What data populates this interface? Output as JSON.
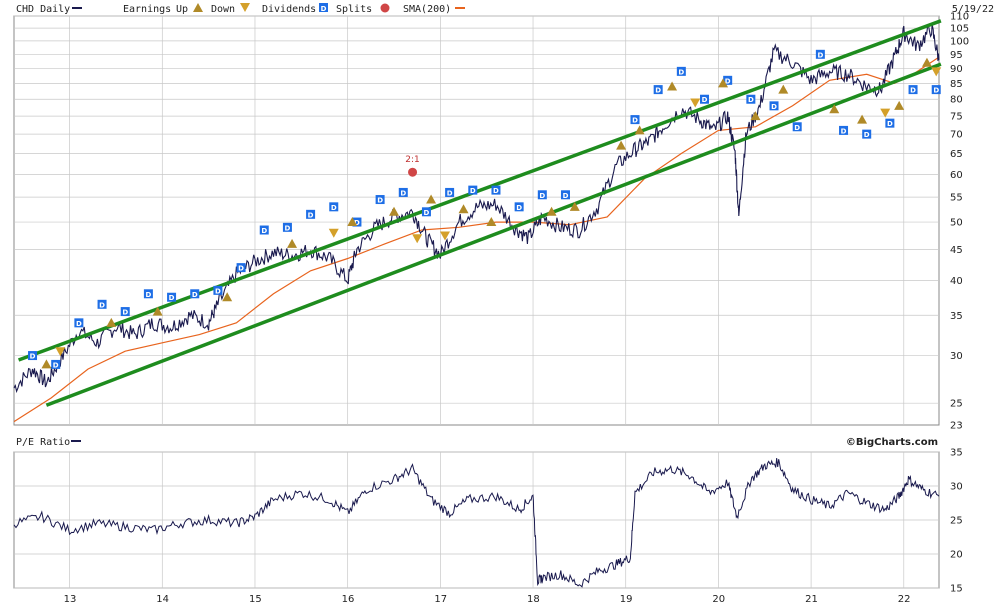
{
  "header": {
    "symbol_label": "CHD Daily",
    "earnings_label": "Earnings",
    "up_label": "Up",
    "down_label": "Down",
    "dividends_label": "Dividends",
    "splits_label": "Splits",
    "sma_label": "SMA(200)",
    "date_label": "5/19/22",
    "pe_label": "P/E Ratio",
    "brand": "©BigCharts.com"
  },
  "colors": {
    "price": "#1a1a4e",
    "sma": "#e8641e",
    "channel": "#1e8c1e",
    "dividend": "#1e6ee6",
    "earnings_up": "#b08a28",
    "earnings_down": "#d4a02a",
    "split": "#d04646",
    "grid": "#c8c8c8"
  },
  "chart_data": [
    {
      "type": "line",
      "title": "CHD Daily",
      "y_scale": "log",
      "ylim": [
        23,
        110
      ],
      "y_ticks": [
        25,
        30,
        35,
        40,
        45,
        50,
        55,
        60,
        65,
        70,
        75,
        80,
        85,
        90,
        95,
        100,
        105,
        110
      ],
      "y_tick_labels": [
        "25",
        "30",
        "35",
        "40",
        "45",
        "50",
        "55",
        "60",
        "65",
        "70",
        "75",
        "80",
        "85",
        "90",
        "95",
        "100",
        "105",
        "110"
      ],
      "y_ticks_bottom_label": "23",
      "xlim": [
        2012.4,
        2022.38
      ],
      "x_ticks": [
        2013,
        2014,
        2015,
        2016,
        2017,
        2018,
        2019,
        2020,
        2021,
        2022
      ],
      "x_tick_labels": [
        "13",
        "14",
        "15",
        "16",
        "17",
        "18",
        "19",
        "20",
        "21",
        "22"
      ],
      "grid": true,
      "series": [
        {
          "name": "CHD Daily",
          "x": [
            2012.4,
            2012.6,
            2012.75,
            2012.9,
            2013.1,
            2013.3,
            2013.5,
            2013.7,
            2013.9,
            2014.1,
            2014.3,
            2014.5,
            2014.6,
            2014.8,
            2015.0,
            2015.2,
            2015.4,
            2015.6,
            2015.8,
            2016.0,
            2016.1,
            2016.3,
            2016.5,
            2016.7,
            2016.85,
            2017.0,
            2017.2,
            2017.4,
            2017.6,
            2017.8,
            2017.95,
            2018.1,
            2018.3,
            2018.5,
            2018.7,
            2018.9,
            2019.1,
            2019.25,
            2019.4,
            2019.6,
            2019.8,
            2019.95,
            2020.1,
            2020.18,
            2020.22,
            2020.3,
            2020.45,
            2020.6,
            2020.8,
            2021.0,
            2021.2,
            2021.4,
            2021.6,
            2021.75,
            2021.9,
            2022.0,
            2022.15,
            2022.3,
            2022.38
          ],
          "values": [
            26.5,
            28.5,
            27.0,
            29.5,
            33.0,
            31.5,
            33.5,
            32.5,
            34.0,
            33.5,
            35.0,
            34.0,
            36.5,
            41.0,
            43.0,
            44.5,
            44.0,
            45.0,
            43.5,
            40.0,
            45.0,
            49.0,
            51.0,
            52.0,
            47.0,
            44.0,
            50.0,
            53.0,
            53.5,
            49.0,
            47.0,
            51.0,
            49.0,
            48.5,
            53.0,
            62.0,
            66.0,
            68.0,
            72.0,
            77.0,
            74.0,
            71.0,
            75.0,
            65.0,
            51.0,
            70.0,
            78.0,
            96.0,
            92.0,
            86.0,
            89.0,
            88.0,
            84.0,
            83.0,
            94.0,
            103.0,
            98.0,
            105.0,
            93.0
          ]
        },
        {
          "name": "SMA(200)",
          "x": [
            2012.4,
            2012.8,
            2013.2,
            2013.6,
            2014.0,
            2014.4,
            2014.8,
            2015.2,
            2015.6,
            2016.0,
            2016.4,
            2016.8,
            2017.2,
            2017.6,
            2018.0,
            2018.4,
            2018.8,
            2019.2,
            2019.6,
            2020.0,
            2020.4,
            2020.8,
            2021.2,
            2021.6,
            2021.9,
            2022.1,
            2022.38
          ],
          "values": [
            23.3,
            25.5,
            28.5,
            30.5,
            31.5,
            32.5,
            34.0,
            38.0,
            41.5,
            43.5,
            46.0,
            48.5,
            49.0,
            50.0,
            50.0,
            49.5,
            51.0,
            59.0,
            65.0,
            71.0,
            72.0,
            78.0,
            86.0,
            88.0,
            85.0,
            88.0,
            94.0
          ]
        },
        {
          "name": "Channel upper",
          "x": [
            2012.45,
            2022.4
          ],
          "values": [
            29.5,
            108.0
          ]
        },
        {
          "name": "Channel lower",
          "x": [
            2012.75,
            2022.4
          ],
          "values": [
            24.8,
            91.5
          ]
        }
      ],
      "events": {
        "dividends": [
          {
            "x": 2012.6,
            "y": 30.0
          },
          {
            "x": 2012.85,
            "y": 29.0
          },
          {
            "x": 2013.1,
            "y": 34.0
          },
          {
            "x": 2013.35,
            "y": 36.5
          },
          {
            "x": 2013.6,
            "y": 35.5
          },
          {
            "x": 2013.85,
            "y": 38.0
          },
          {
            "x": 2014.1,
            "y": 37.5
          },
          {
            "x": 2014.35,
            "y": 38.0
          },
          {
            "x": 2014.6,
            "y": 38.5
          },
          {
            "x": 2014.85,
            "y": 42.0
          },
          {
            "x": 2015.1,
            "y": 48.5
          },
          {
            "x": 2015.35,
            "y": 49.0
          },
          {
            "x": 2015.6,
            "y": 51.5
          },
          {
            "x": 2015.85,
            "y": 53.0
          },
          {
            "x": 2016.1,
            "y": 50.0
          },
          {
            "x": 2016.35,
            "y": 54.5
          },
          {
            "x": 2016.6,
            "y": 56.0
          },
          {
            "x": 2016.85,
            "y": 52.0
          },
          {
            "x": 2017.1,
            "y": 56.0
          },
          {
            "x": 2017.35,
            "y": 56.5
          },
          {
            "x": 2017.6,
            "y": 56.5
          },
          {
            "x": 2017.85,
            "y": 53.0
          },
          {
            "x": 2018.1,
            "y": 55.5
          },
          {
            "x": 2018.35,
            "y": 55.5
          },
          {
            "x": 2019.1,
            "y": 74.0
          },
          {
            "x": 2019.35,
            "y": 83.0
          },
          {
            "x": 2019.6,
            "y": 89.0
          },
          {
            "x": 2019.85,
            "y": 80.0
          },
          {
            "x": 2020.1,
            "y": 86.0
          },
          {
            "x": 2020.35,
            "y": 80.0
          },
          {
            "x": 2020.6,
            "y": 78.0
          },
          {
            "x": 2020.85,
            "y": 72.0
          },
          {
            "x": 2021.1,
            "y": 95.0
          },
          {
            "x": 2021.35,
            "y": 71.0
          },
          {
            "x": 2021.6,
            "y": 70.0
          },
          {
            "x": 2021.85,
            "y": 73.0
          },
          {
            "x": 2022.1,
            "y": 83.0
          },
          {
            "x": 2022.35,
            "y": 83.0
          }
        ],
        "earnings_up": [
          {
            "x": 2012.75,
            "y": 29.0
          },
          {
            "x": 2013.45,
            "y": 34.0
          },
          {
            "x": 2013.95,
            "y": 35.5
          },
          {
            "x": 2014.7,
            "y": 37.5
          },
          {
            "x": 2015.4,
            "y": 46.0
          },
          {
            "x": 2016.05,
            "y": 50.0
          },
          {
            "x": 2016.5,
            "y": 52.0
          },
          {
            "x": 2016.9,
            "y": 54.5
          },
          {
            "x": 2017.25,
            "y": 52.5
          },
          {
            "x": 2017.55,
            "y": 50.0
          },
          {
            "x": 2018.2,
            "y": 52.0
          },
          {
            "x": 2018.45,
            "y": 53.0
          },
          {
            "x": 2018.95,
            "y": 67.0
          },
          {
            "x": 2019.15,
            "y": 71.0
          },
          {
            "x": 2019.5,
            "y": 84.0
          },
          {
            "x": 2020.05,
            "y": 85.0
          },
          {
            "x": 2020.4,
            "y": 75.0
          },
          {
            "x": 2020.7,
            "y": 83.0
          },
          {
            "x": 2021.25,
            "y": 77.0
          },
          {
            "x": 2021.55,
            "y": 74.0
          },
          {
            "x": 2021.95,
            "y": 78.0
          },
          {
            "x": 2022.25,
            "y": 92.0
          }
        ],
        "earnings_down": [
          {
            "x": 2012.9,
            "y": 30.5
          },
          {
            "x": 2015.85,
            "y": 48.0
          },
          {
            "x": 2016.75,
            "y": 47.0
          },
          {
            "x": 2017.05,
            "y": 47.5
          },
          {
            "x": 2019.75,
            "y": 79.0
          },
          {
            "x": 2021.8,
            "y": 76.0
          },
          {
            "x": 2022.35,
            "y": 89.0
          }
        ],
        "splits": [
          {
            "x": 2016.7,
            "y": 60.5,
            "label": "2:1"
          }
        ]
      }
    },
    {
      "type": "line",
      "title": "P/E Ratio",
      "ylim": [
        15,
        35
      ],
      "y_ticks": [
        15,
        20,
        25,
        30,
        35
      ],
      "y_tick_labels": [
        "15",
        "20",
        "25",
        "30",
        "35"
      ],
      "grid": true,
      "series": [
        {
          "name": "P/E Ratio",
          "x": [
            2012.4,
            2012.7,
            2013.0,
            2013.3,
            2013.6,
            2013.9,
            2014.2,
            2014.5,
            2014.8,
            2015.0,
            2015.2,
            2015.5,
            2015.8,
            2016.0,
            2016.2,
            2016.5,
            2016.7,
            2016.9,
            2017.1,
            2017.3,
            2017.6,
            2017.85,
            2018.0,
            2018.05,
            2018.1,
            2018.3,
            2018.5,
            2018.7,
            2018.9,
            2019.05,
            2019.1,
            2019.3,
            2019.5,
            2019.7,
            2019.9,
            2020.1,
            2020.2,
            2020.35,
            2020.5,
            2020.65,
            2020.8,
            2021.0,
            2021.2,
            2021.4,
            2021.6,
            2021.8,
            2021.95,
            2022.05,
            2022.2,
            2022.38
          ],
          "values": [
            24.5,
            25.5,
            23.5,
            24.5,
            24.0,
            23.5,
            24.5,
            25.0,
            24.5,
            25.5,
            28.0,
            29.0,
            28.0,
            26.0,
            29.5,
            31.0,
            32.5,
            28.0,
            26.0,
            28.0,
            28.5,
            26.5,
            28.5,
            16.0,
            16.5,
            17.0,
            15.5,
            17.5,
            18.5,
            19.5,
            29.0,
            32.0,
            32.5,
            31.5,
            29.0,
            30.5,
            25.5,
            31.0,
            33.0,
            33.5,
            29.5,
            28.0,
            27.0,
            29.0,
            27.5,
            26.5,
            28.5,
            31.0,
            29.5,
            28.5
          ]
        }
      ]
    }
  ]
}
